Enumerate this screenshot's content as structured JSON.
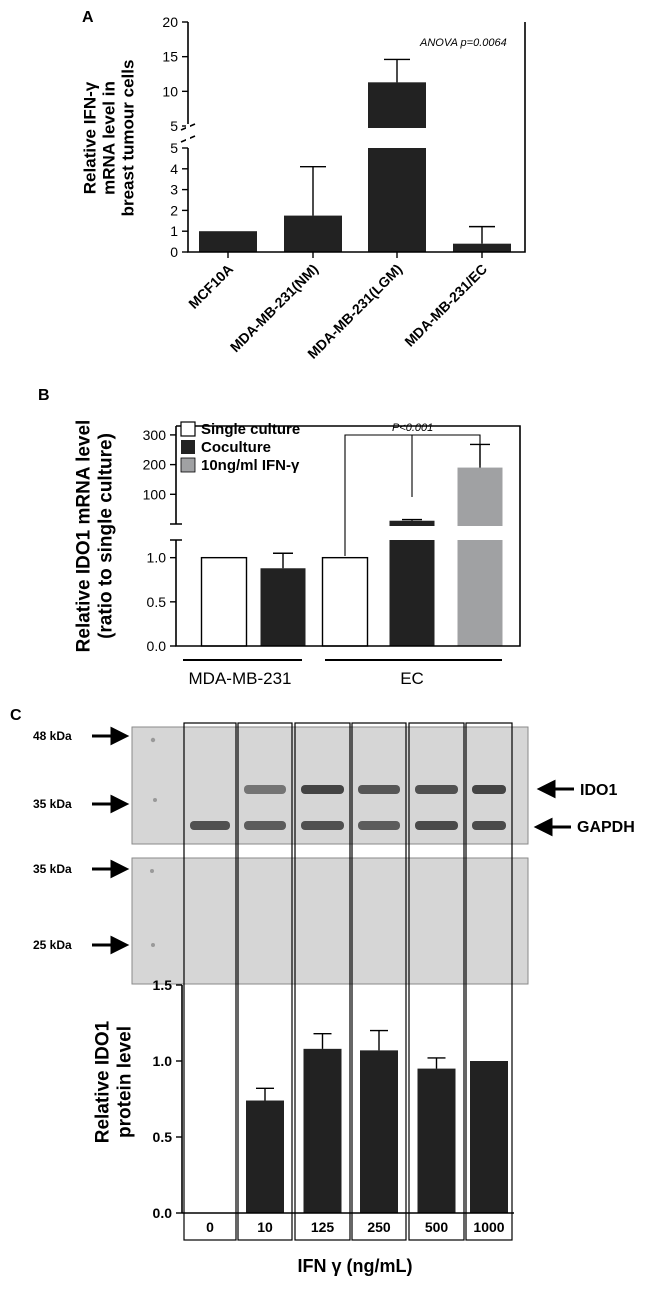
{
  "panels": {
    "a": "A",
    "b": "B",
    "c": "C"
  },
  "chart_data": [
    {
      "id": "A",
      "type": "bar",
      "ylabel": "Relative IFN-γ mRNA level in breast tumour cells",
      "ylabel_lines": [
        "Relative IFN-γ",
        "mRNA level in",
        "breast tumour cells"
      ],
      "annotation": "ANOVA p=0.0064",
      "categories": [
        "MCF10A",
        "MDA-MB-231(NM)",
        "MDA-MB-231(LGM)",
        "MDA-MB-231/EC"
      ],
      "values": [
        1.0,
        1.75,
        11.3,
        0.4
      ],
      "errors": [
        0,
        2.35,
        3.3,
        0.82
      ],
      "color": "#222222",
      "axis_break": true,
      "yticks_lower": [
        "0",
        "1",
        "2",
        "3",
        "4",
        "5"
      ],
      "yticks_upper": [
        "5",
        "10",
        "15",
        "20"
      ],
      "ylim_lower": [
        0,
        5
      ],
      "ylim_upper": [
        5,
        20
      ]
    },
    {
      "id": "B",
      "type": "bar",
      "ylabel": "Relative IDO1 mRNA level (ratio to single culture)",
      "ylabel_lines": [
        "Relative IDO1 mRNA level",
        "(ratio to single culture)"
      ],
      "legend": [
        "Single culture",
        "Coculture",
        "10ng/ml IFN-γ"
      ],
      "series_colors": [
        "#ffffff",
        "#222222",
        "#a0a1a3"
      ],
      "groups": [
        "MDA-MB-231",
        "EC"
      ],
      "bars": [
        {
          "group": "MDA-MB-231",
          "series": "Single culture",
          "value": 1.0,
          "error": 0
        },
        {
          "group": "MDA-MB-231",
          "series": "Coculture",
          "value": 0.88,
          "error": 0.17
        },
        {
          "group": "EC",
          "series": "Single culture",
          "value": 1.0,
          "error": 0
        },
        {
          "group": "EC",
          "series": "Coculture",
          "value": 11,
          "error": 4
        },
        {
          "group": "EC",
          "series": "10ng/ml IFN-γ",
          "value": 190,
          "error": 78
        }
      ],
      "significance": "P<0.001",
      "axis_break": true,
      "yticks_lower": [
        "0.0",
        "0.5",
        "1.0"
      ],
      "yticks_upper": [
        "100",
        "200",
        "300"
      ],
      "ylim_lower": [
        0,
        1.2
      ],
      "ylim_upper": [
        0,
        330
      ]
    },
    {
      "id": "C",
      "type": "bar",
      "ylabel": "Relative IDO1 protein level",
      "ylabel_lines": [
        "Relative IDO1",
        "protein level"
      ],
      "xlabel": "IFN γ (ng/mL)",
      "categories": [
        "0",
        "10",
        "125",
        "250",
        "500",
        "1000"
      ],
      "values": [
        0,
        0.74,
        1.08,
        1.07,
        0.95,
        1.0
      ],
      "errors": [
        0,
        0.08,
        0.1,
        0.13,
        0.07,
        0
      ],
      "color": "#222222",
      "yticks": [
        "0.0",
        "0.5",
        "1.0",
        "1.5"
      ],
      "ylim": [
        0,
        1.5
      ]
    }
  ],
  "blot": {
    "ido1_label": "IDO1",
    "gapdh_label": "GAPDH",
    "markers_top": [
      "48 kDa",
      "35 kDa"
    ],
    "markers_bottom": [
      "35 kDa",
      "25 kDa"
    ],
    "ido1_intensity": [
      0,
      0.45,
      0.85,
      0.7,
      0.75,
      0.85
    ],
    "gapdh_intensity": [
      0.75,
      0.65,
      0.75,
      0.65,
      0.8,
      0.8
    ]
  }
}
